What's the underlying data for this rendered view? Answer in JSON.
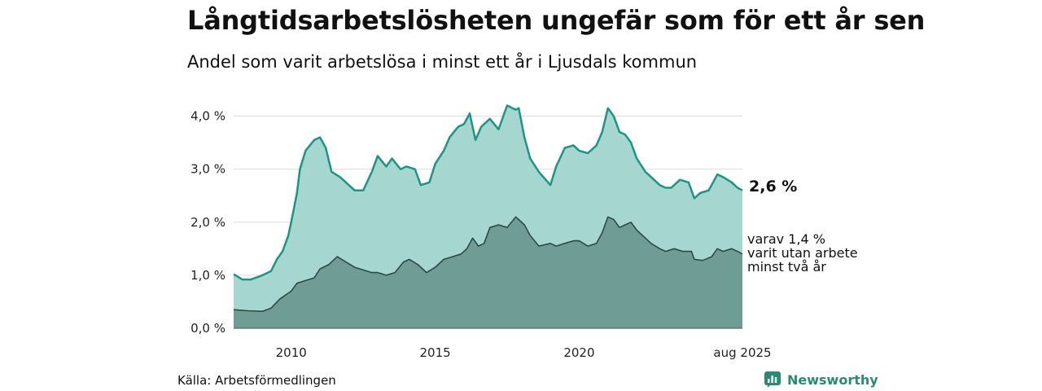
{
  "title": "Långtidsarbetslösheten ungefär som för ett år sen",
  "subtitle": "Andel som varit arbetslösa i minst ett år i Ljusdals kommun",
  "source": "Källa: Arbetsförmedlingen",
  "brand": "Newsworthy",
  "annotations": {
    "main": "2,6 %",
    "sub": [
      "varav 1,4 %",
      "varit utan arbete",
      "minst två år"
    ]
  },
  "colors": {
    "series_main_fill": "#a5d6d0",
    "series_main_line": "#1f9484",
    "series_sub_fill": "#6f9c95",
    "series_sub_line": "#2e4a45",
    "brand": "#2b8a72"
  },
  "chart_data": {
    "type": "area",
    "x_unit": "year",
    "xlim": [
      2008.0,
      2025.67
    ],
    "ylim": [
      0,
      4.5
    ],
    "grid": true,
    "y_ticks": [
      {
        "value": 0,
        "label": "0,0 %"
      },
      {
        "value": 1,
        "label": "1,0 %"
      },
      {
        "value": 2,
        "label": "2,0 %"
      },
      {
        "value": 3,
        "label": "3,0 %"
      },
      {
        "value": 4,
        "label": "4,0 %"
      }
    ],
    "x_ticks": [
      {
        "value": 2010,
        "label": "2010"
      },
      {
        "value": 2015,
        "label": "2015"
      },
      {
        "value": 2020,
        "label": "2020"
      },
      {
        "value": 2025.67,
        "label": "aug 2025"
      }
    ],
    "series": [
      {
        "name": "",
        "x": [
          2008.0,
          2008.3,
          2008.6,
          2009.0,
          2009.3,
          2009.5,
          2009.7,
          2009.9,
          2010.0,
          2010.2,
          2010.3,
          2010.5,
          2010.8,
          2011.0,
          2011.2,
          2011.4,
          2011.7,
          2012.0,
          2012.2,
          2012.5,
          2012.8,
          2013.0,
          2013.3,
          2013.5,
          2013.8,
          2014.0,
          2014.3,
          2014.5,
          2014.8,
          2015.0,
          2015.3,
          2015.5,
          2015.8,
          2016.0,
          2016.2,
          2016.4,
          2016.6,
          2016.9,
          2017.2,
          2017.5,
          2017.8,
          2017.9,
          2018.1,
          2018.3,
          2018.6,
          2019.0,
          2019.2,
          2019.5,
          2019.8,
          2020.0,
          2020.3,
          2020.6,
          2020.8,
          2021.0,
          2021.2,
          2021.4,
          2021.6,
          2021.8,
          2022.0,
          2022.3,
          2022.5,
          2022.8,
          2023.0,
          2023.2,
          2023.5,
          2023.8,
          2024.0,
          2024.2,
          2024.5,
          2024.8,
          2025.0,
          2025.3,
          2025.5,
          2025.67
        ],
        "values": [
          1.02,
          0.92,
          0.92,
          1.0,
          1.08,
          1.3,
          1.45,
          1.75,
          2.0,
          2.55,
          3.0,
          3.35,
          3.55,
          3.6,
          3.4,
          2.95,
          2.85,
          2.7,
          2.6,
          2.6,
          2.95,
          3.25,
          3.05,
          3.2,
          3.0,
          3.05,
          3.0,
          2.7,
          2.75,
          3.1,
          3.35,
          3.6,
          3.8,
          3.85,
          4.05,
          3.55,
          3.8,
          3.95,
          3.75,
          4.2,
          4.12,
          4.15,
          3.6,
          3.2,
          2.95,
          2.7,
          3.05,
          3.4,
          3.45,
          3.35,
          3.3,
          3.45,
          3.7,
          4.15,
          4.0,
          3.7,
          3.65,
          3.5,
          3.2,
          2.95,
          2.85,
          2.7,
          2.65,
          2.65,
          2.8,
          2.75,
          2.45,
          2.55,
          2.6,
          2.9,
          2.85,
          2.75,
          2.65,
          2.6
        ]
      },
      {
        "name": "",
        "x": [
          2008.0,
          2008.5,
          2009.0,
          2009.3,
          2009.6,
          2010.0,
          2010.2,
          2010.5,
          2010.8,
          2011.0,
          2011.3,
          2011.6,
          2011.9,
          2012.2,
          2012.5,
          2012.8,
          2013.0,
          2013.3,
          2013.6,
          2013.9,
          2014.1,
          2014.4,
          2014.7,
          2015.0,
          2015.3,
          2015.6,
          2015.9,
          2016.1,
          2016.3,
          2016.5,
          2016.7,
          2016.9,
          2017.2,
          2017.5,
          2017.8,
          2017.9,
          2018.1,
          2018.3,
          2018.6,
          2019.0,
          2019.2,
          2019.5,
          2019.8,
          2020.0,
          2020.3,
          2020.6,
          2020.8,
          2021.0,
          2021.2,
          2021.4,
          2021.6,
          2021.8,
          2022.0,
          2022.2,
          2022.5,
          2022.8,
          2023.0,
          2023.3,
          2023.6,
          2023.9,
          2024.0,
          2024.3,
          2024.6,
          2024.8,
          2025.0,
          2025.3,
          2025.5,
          2025.67
        ],
        "values": [
          0.35,
          0.33,
          0.32,
          0.38,
          0.55,
          0.7,
          0.85,
          0.9,
          0.95,
          1.12,
          1.2,
          1.35,
          1.25,
          1.15,
          1.1,
          1.05,
          1.05,
          1.0,
          1.05,
          1.25,
          1.3,
          1.2,
          1.05,
          1.15,
          1.3,
          1.35,
          1.4,
          1.5,
          1.7,
          1.55,
          1.6,
          1.9,
          1.95,
          1.9,
          2.1,
          2.05,
          1.95,
          1.75,
          1.55,
          1.6,
          1.55,
          1.6,
          1.65,
          1.65,
          1.55,
          1.6,
          1.8,
          2.1,
          2.05,
          1.9,
          1.95,
          2.0,
          1.85,
          1.75,
          1.6,
          1.5,
          1.45,
          1.5,
          1.45,
          1.45,
          1.3,
          1.28,
          1.35,
          1.5,
          1.45,
          1.5,
          1.45,
          1.4
        ]
      }
    ]
  }
}
